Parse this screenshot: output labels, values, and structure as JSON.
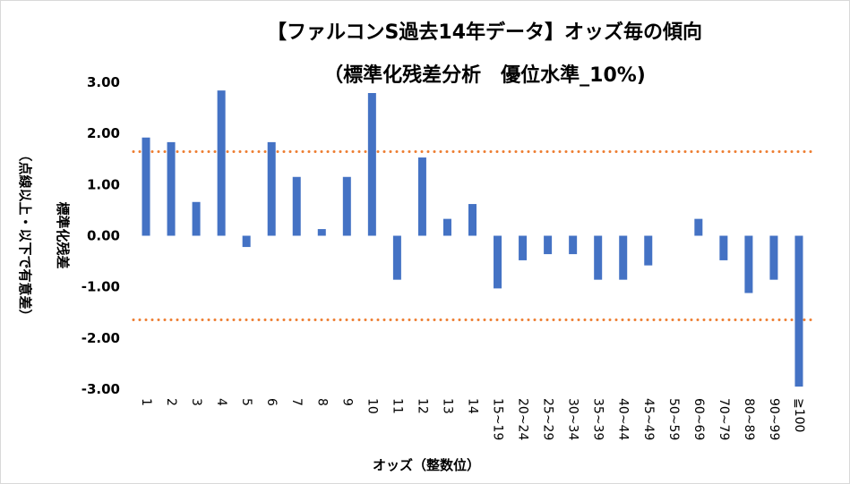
{
  "chart_data": {
    "type": "bar",
    "title": "【ファルコンS過去14年データ】オッズ毎の傾向",
    "subtitle": "（標準化残差分析　優位水準_10%)",
    "xlabel": "オッズ（整数位）",
    "ylabel_main": "標準化残差",
    "ylabel_note": "（点線以上・以下で有意差）",
    "ylim": [
      -3.0,
      3.0
    ],
    "y_ticks": [
      "3.00",
      "2.00",
      "1.00",
      "0.00",
      "-1.00",
      "-2.00",
      "-3.00"
    ],
    "y_tick_values": [
      3,
      2,
      1,
      0,
      -1,
      -2,
      -3
    ],
    "categories": [
      "1",
      "2",
      "3",
      "4",
      "5",
      "6",
      "7",
      "8",
      "9",
      "10",
      "11",
      "12",
      "13",
      "14",
      "15~19",
      "20~24",
      "25~29",
      "30~34",
      "35~39",
      "40~44",
      "45~49",
      "50~59",
      "60~69",
      "70~79",
      "80~89",
      "90~99",
      "≧100"
    ],
    "series": [
      {
        "values": [
          1.92,
          1.83,
          0.66,
          2.84,
          -0.22,
          1.83,
          1.15,
          0.13,
          1.15,
          2.79,
          -0.86,
          1.53,
          0.33,
          0.62,
          -1.03,
          -0.48,
          -0.36,
          -0.36,
          -0.86,
          -0.86,
          -0.58,
          0.0,
          0.33,
          -0.48,
          -1.12,
          -0.86,
          -2.95
        ],
        "color": "#4472c4"
      }
    ],
    "reference_lines": [
      {
        "value": 1.645,
        "style": "dotted",
        "color": "#ed7d31"
      },
      {
        "value": -1.645,
        "style": "dotted",
        "color": "#ed7d31"
      }
    ],
    "grid": false,
    "legend": "none"
  }
}
